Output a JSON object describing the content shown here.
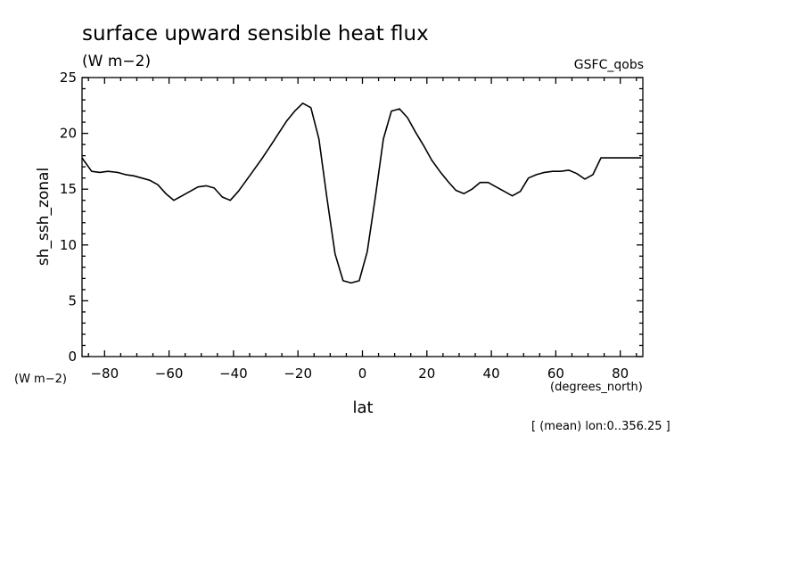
{
  "chart_data": {
    "type": "line",
    "title": "surface upward sensible heat flux",
    "units_label": "(W m−2)",
    "source_label": "GSFC_qobs",
    "ylabel": "sh_ssh_zonal",
    "y_units_label": "(W m−2)",
    "xlabel": "lat",
    "x_units_label": "(degrees_north)",
    "footnote": "[ (mean) lon:0..356.25 ]",
    "xlim": [
      -87,
      87
    ],
    "ylim": [
      0,
      25
    ],
    "x_ticks": [
      -80,
      -60,
      -40,
      -20,
      0,
      20,
      40,
      60,
      80
    ],
    "x_tick_labels": [
      "−80",
      "−60",
      "−40",
      "−20",
      "0",
      "20",
      "40",
      "60",
      "80"
    ],
    "y_ticks": [
      0,
      5,
      10,
      15,
      20,
      25
    ],
    "y_tick_labels": [
      "0",
      "5",
      "10",
      "15",
      "20",
      "25"
    ],
    "grid": false,
    "series": [
      {
        "x": [
          -87,
          -84,
          -81.5,
          -79,
          -76,
          -73.5,
          -71,
          -68.5,
          -66,
          -63.5,
          -61,
          -58.5,
          -56,
          -53.5,
          -51,
          -48.5,
          -46,
          -43.5,
          -41,
          -38.5,
          -36,
          -33.5,
          -31,
          -28.5,
          -26,
          -23.5,
          -21,
          -18.5,
          -16,
          -13.5,
          -11,
          -8.5,
          -6,
          -3.5,
          -1,
          1.5,
          4,
          6.5,
          9,
          11.5,
          14,
          16.5,
          19,
          21.5,
          24,
          26.5,
          29,
          31.5,
          34,
          36.5,
          39,
          41.5,
          44,
          46.5,
          49,
          51.5,
          54,
          56.5,
          59,
          61.5,
          64,
          66.5,
          69,
          71.5,
          74,
          76.5,
          79,
          81.5,
          84,
          86.5
        ],
        "y": [
          17.8,
          16.6,
          16.5,
          16.6,
          16.5,
          16.3,
          16.2,
          16.0,
          15.8,
          15.4,
          14.6,
          14.0,
          14.4,
          14.8,
          15.2,
          15.3,
          15.1,
          14.3,
          14.0,
          14.8,
          15.8,
          16.8,
          17.8,
          18.9,
          20.0,
          21.1,
          22.0,
          22.7,
          22.3,
          19.5,
          14.2,
          9.2,
          6.8,
          6.6,
          6.8,
          9.4,
          14.3,
          19.5,
          22.0,
          22.2,
          21.4,
          20.1,
          18.9,
          17.6,
          16.6,
          15.7,
          14.9,
          14.6,
          15.0,
          15.6,
          15.6,
          15.2,
          14.8,
          14.4,
          14.8,
          16.0,
          16.3,
          16.5,
          16.6,
          16.6,
          16.7,
          16.4,
          15.9,
          16.3,
          17.8,
          17.8,
          17.8,
          17.8,
          17.8,
          17.8
        ]
      }
    ]
  }
}
